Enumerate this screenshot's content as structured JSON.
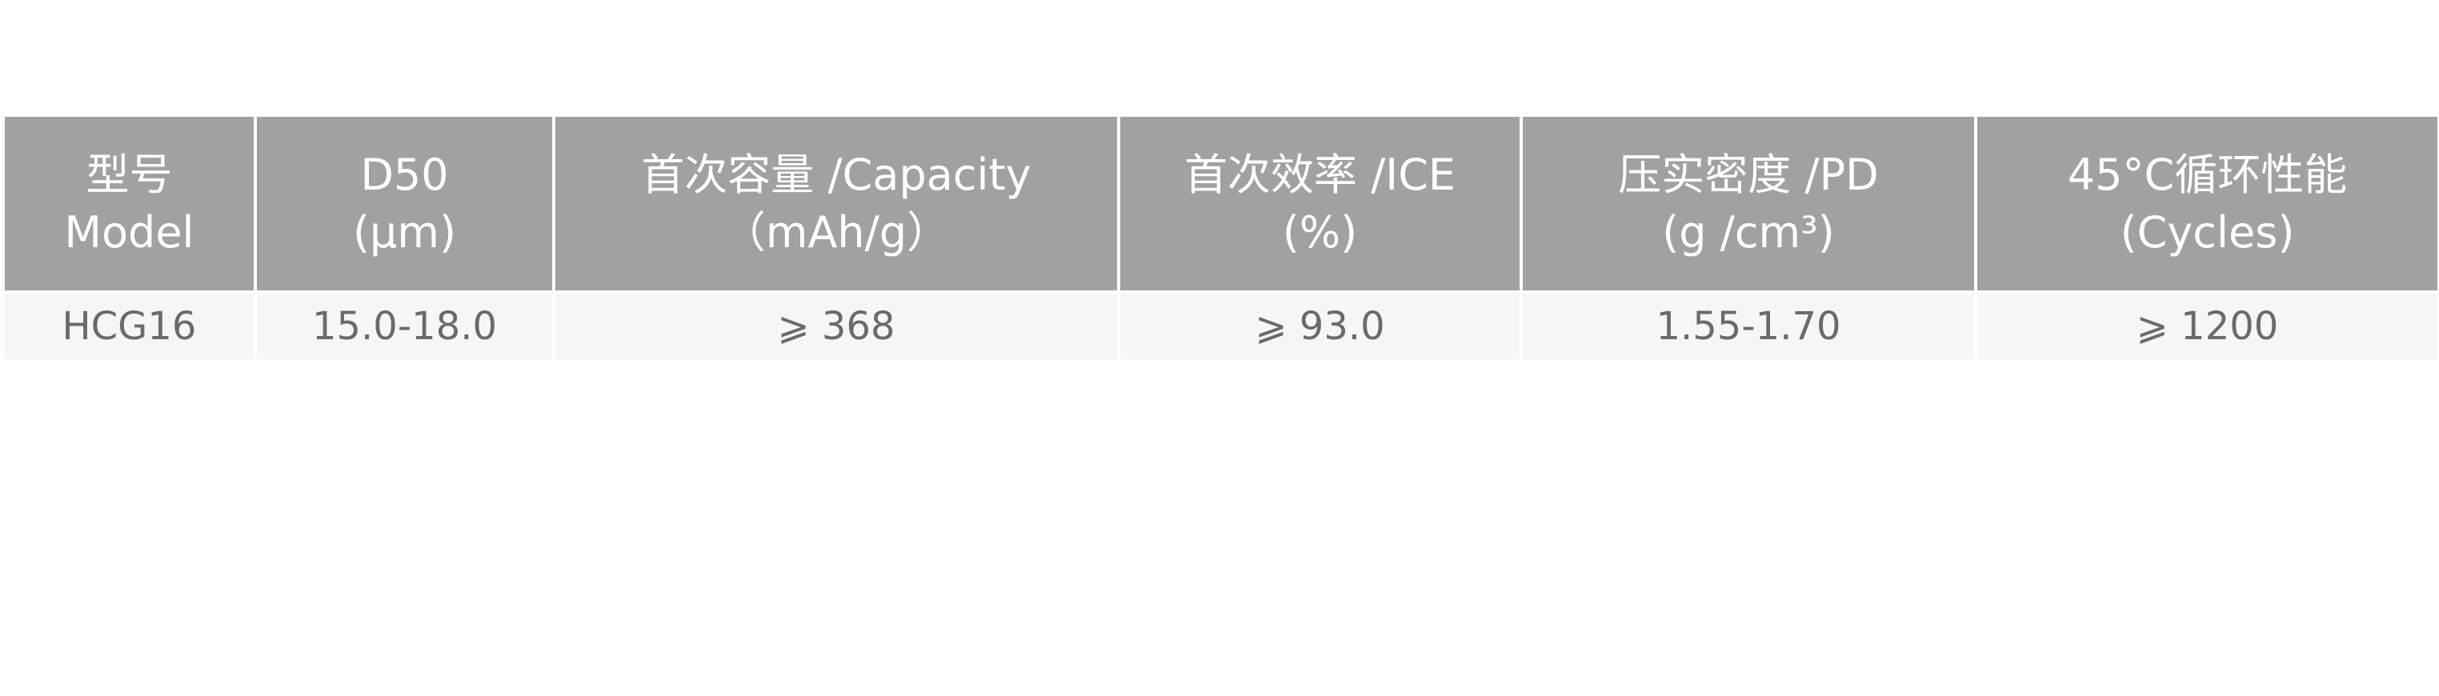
{
  "header_bg": "#a0a1a0",
  "row_bg": "#f5f6f5",
  "columns": [
    {
      "line1": "型号",
      "line2": "Model"
    },
    {
      "line1": "D50",
      "line2": "(μm)"
    },
    {
      "line1": "首次容量 /Capacity",
      "line2": "（mAh/g）"
    },
    {
      "line1": "首次效率 /ICE",
      "line2": "(%)"
    },
    {
      "line1": "压实密度 /PD",
      "line2": "(g /cm³)"
    },
    {
      "line1": "45°C循环性能",
      "line2": "(Cycles)"
    }
  ],
  "rows": [
    [
      "HCG16",
      "15.0-18.0",
      "⩾ 368",
      "⩾ 93.0",
      "1.55-1.70",
      "⩾ 1200"
    ]
  ]
}
